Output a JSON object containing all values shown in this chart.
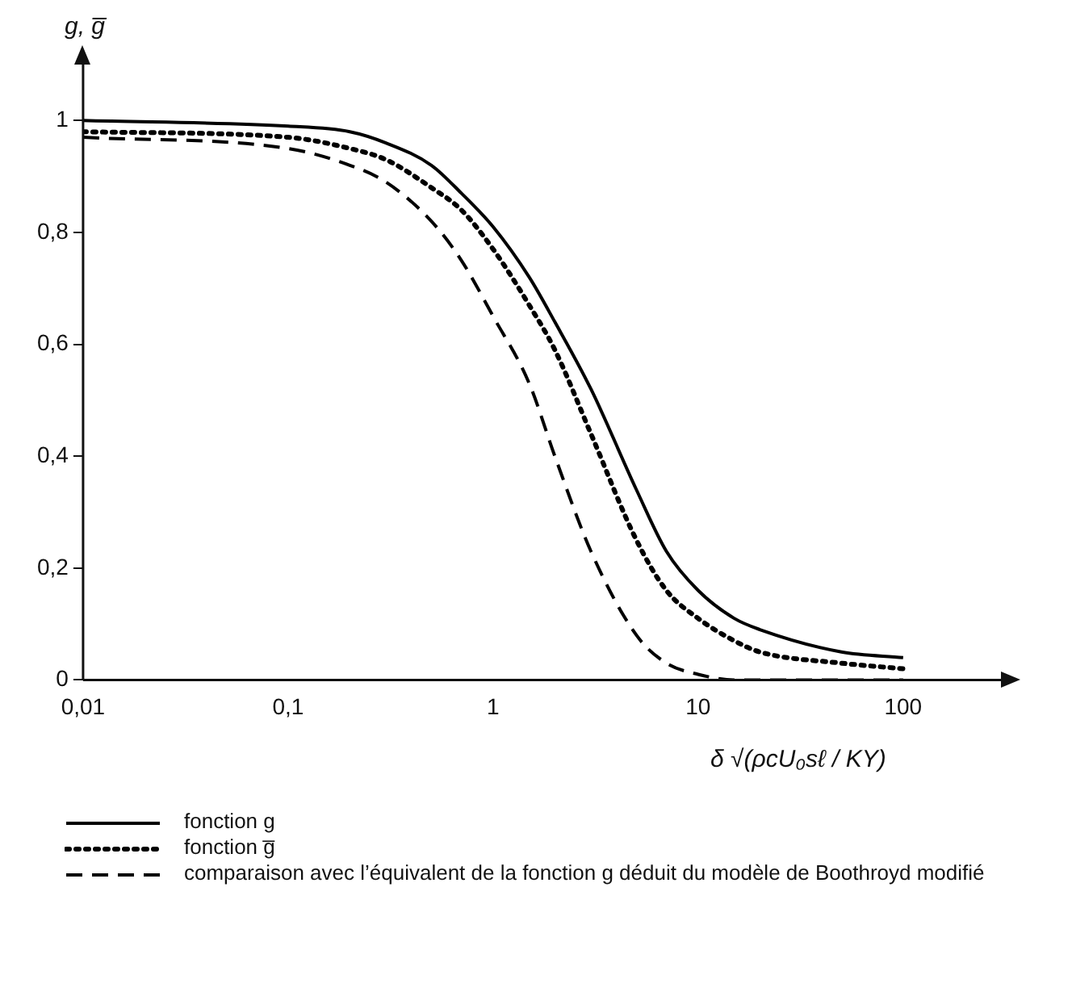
{
  "chart_data": {
    "type": "line",
    "xlabel": "δ √(ρcU₀sℓ / KY)",
    "ylabel": "g, g̅",
    "log": "x",
    "grid": false,
    "legend": "bottom",
    "marker": "none",
    "xlim": [
      0.01,
      300
    ],
    "xticks": [
      {
        "value": 0.01,
        "label": "0,01"
      },
      {
        "value": 0.1,
        "label": "0,1"
      },
      1,
      10,
      100
    ],
    "ylim": [
      0,
      1.1
    ],
    "yticks": [
      0,
      {
        "value": 0.2,
        "label": "0,2"
      },
      {
        "value": 0.4,
        "label": "0,4"
      },
      {
        "value": 0.6,
        "label": "0,6"
      },
      {
        "value": 0.8,
        "label": "0,8"
      },
      1
    ],
    "x": [
      0.01,
      0.1,
      0.2,
      0.3,
      0.5,
      0.7,
      1,
      1.5,
      2,
      3,
      5,
      7,
      10,
      15,
      20,
      50,
      100
    ],
    "series": [
      {
        "name": "fonction g",
        "color": "#000000",
        "line_style": "solid",
        "values": [
          1,
          0.99,
          0.98,
          0.96,
          0.92,
          0.87,
          0.81,
          0.72,
          0.64,
          0.52,
          0.34,
          0.23,
          0.16,
          0.11,
          0.09,
          0.05,
          0.04
        ]
      },
      {
        "name": "fonction g̅",
        "color": "#000000",
        "line_style": "dotted",
        "values": [
          0.98,
          0.97,
          0.95,
          0.93,
          0.88,
          0.84,
          0.77,
          0.67,
          0.59,
          0.44,
          0.25,
          0.16,
          0.11,
          0.07,
          0.05,
          0.03,
          0.02
        ]
      },
      {
        "name": "comparaison avec l’équivalent de la fonction g déduit du modèle de Boothroyd modifié",
        "color": "#000000",
        "line_style": "dashed",
        "values": [
          0.97,
          0.95,
          0.92,
          0.89,
          0.82,
          0.75,
          0.65,
          0.53,
          0.4,
          0.23,
          0.08,
          0.03,
          0.01,
          0,
          0,
          0,
          0
        ]
      }
    ]
  }
}
